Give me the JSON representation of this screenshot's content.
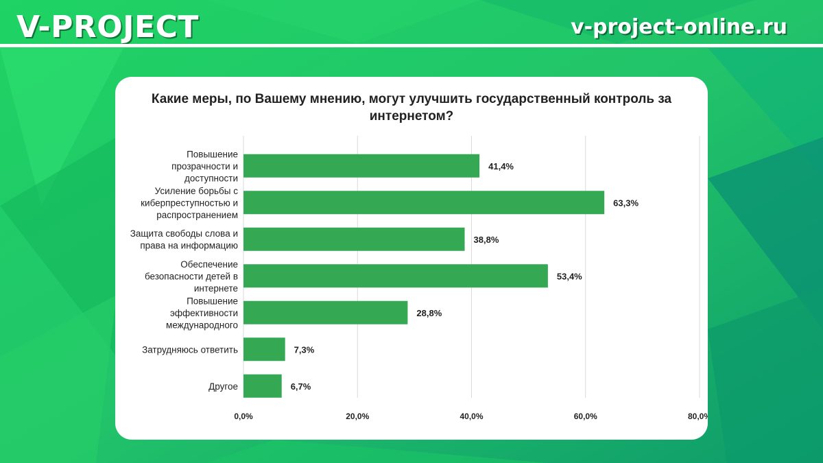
{
  "header": {
    "brand": "V-PROJECT",
    "site": "v-project-online.ru"
  },
  "colors": {
    "bar": "#34a853",
    "grid": "#d9d9d9",
    "background_light": "#2dd96e",
    "background_dark": "#0a8a64"
  },
  "chart_data": {
    "type": "bar",
    "orientation": "horizontal",
    "title": "Какие меры, по Вашему мнению, могут улучшить государственный контроль за интернетом?",
    "categories": [
      [
        "Повышение",
        "прозрачности и",
        "доступности"
      ],
      [
        "Усиление борьбы с",
        "киберпреступностью и",
        "распространением"
      ],
      [
        "Защита свободы слова и",
        "права на информацию"
      ],
      [
        "Обеспечение",
        "безопасности детей в",
        "интернете"
      ],
      [
        "Повышение",
        "эффективности",
        "международного"
      ],
      [
        "Затрудняюсь ответить"
      ],
      [
        "Другое"
      ]
    ],
    "values": [
      41.4,
      63.3,
      38.8,
      53.4,
      28.8,
      7.3,
      6.7
    ],
    "value_labels": [
      "41,4%",
      "63,3%",
      "38,8%",
      "53,4%",
      "28,8%",
      "7,3%",
      "6,7%"
    ],
    "xlim": [
      0,
      80
    ],
    "ticks": [
      0,
      20,
      40,
      60,
      80
    ],
    "tick_labels": [
      "0,0%",
      "20,0%",
      "40,0%",
      "60,0%",
      "80,0%"
    ],
    "grid": true
  }
}
